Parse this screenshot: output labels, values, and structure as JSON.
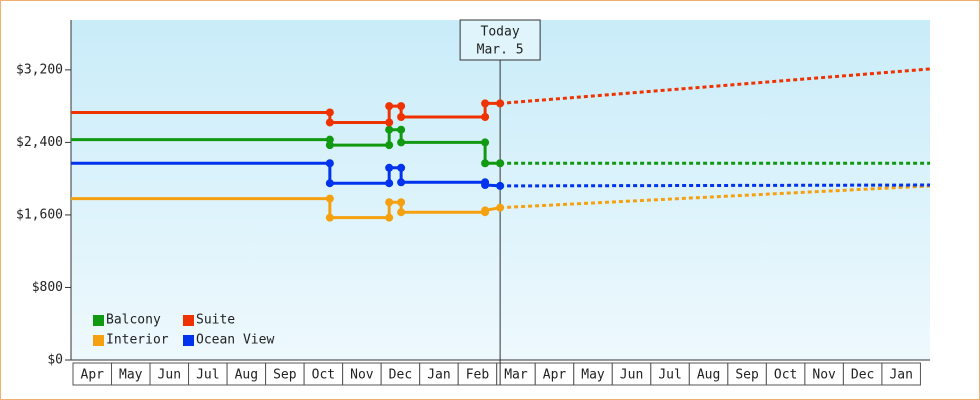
{
  "chart_data": {
    "type": "line",
    "annotation": {
      "x": 11.14,
      "lines": [
        "Today",
        "Mar. 5"
      ]
    },
    "xlim": [
      0,
      22.3
    ],
    "xticks": [
      {
        "value": 0.5,
        "label": "Apr"
      },
      {
        "value": 1.5,
        "label": "May"
      },
      {
        "value": 2.5,
        "label": "Jun"
      },
      {
        "value": 3.5,
        "label": "Jul"
      },
      {
        "value": 4.5,
        "label": "Aug"
      },
      {
        "value": 5.5,
        "label": "Sep"
      },
      {
        "value": 6.5,
        "label": "Oct"
      },
      {
        "value": 7.5,
        "label": "Nov"
      },
      {
        "value": 8.5,
        "label": "Dec"
      },
      {
        "value": 9.5,
        "label": "Jan"
      },
      {
        "value": 10.5,
        "label": "Feb"
      },
      {
        "value": 11.5,
        "label": "Mar"
      },
      {
        "value": 12.5,
        "label": "Apr"
      },
      {
        "value": 13.5,
        "label": "May"
      },
      {
        "value": 14.5,
        "label": "Jun"
      },
      {
        "value": 15.5,
        "label": "Jul"
      },
      {
        "value": 16.5,
        "label": "Aug"
      },
      {
        "value": 17.5,
        "label": "Sep"
      },
      {
        "value": 18.5,
        "label": "Oct"
      },
      {
        "value": 19.5,
        "label": "Nov"
      },
      {
        "value": 20.5,
        "label": "Dec"
      },
      {
        "value": 21.5,
        "label": "Jan"
      }
    ],
    "ylim": [
      0,
      3750
    ],
    "yticks": [
      {
        "value": 0,
        "label": "$0"
      },
      {
        "value": 800,
        "label": "$800"
      },
      {
        "value": 1600,
        "label": "$1,600"
      },
      {
        "value": 2400,
        "label": "$2,400"
      },
      {
        "value": 3200,
        "label": "$3,200"
      }
    ],
    "legend": "bottom-left",
    "series": [
      {
        "name": "Balcony",
        "color": "#119911",
        "x": [
          0,
          6.72,
          6.72,
          8.26,
          8.26,
          8.57,
          8.57,
          10.75,
          10.75,
          11.14
        ],
        "values": [
          2430,
          2430,
          2370,
          2370,
          2540,
          2540,
          2400,
          2400,
          2170,
          2170
        ],
        "forecast": {
          "x": [
            11.14,
            16.8,
            22.3
          ],
          "values": [
            2170,
            2170,
            2170
          ]
        }
      },
      {
        "name": "Suite",
        "color": "#ee3300",
        "x": [
          0,
          6.72,
          6.72,
          8.26,
          8.26,
          8.57,
          8.57,
          10.75,
          10.75,
          11.14
        ],
        "values": [
          2730,
          2730,
          2620,
          2620,
          2800,
          2800,
          2680,
          2680,
          2830,
          2830
        ],
        "forecast": {
          "x": [
            11.14,
            22.3
          ],
          "values": [
            2830,
            3210
          ]
        }
      },
      {
        "name": "Interior",
        "color": "#f5a10f",
        "x": [
          0,
          6.72,
          6.72,
          8.26,
          8.26,
          8.57,
          8.57,
          10.75,
          10.75,
          11.14
        ],
        "values": [
          1780,
          1780,
          1570,
          1570,
          1740,
          1740,
          1630,
          1630,
          1650,
          1680
        ],
        "forecast": {
          "x": [
            11.14,
            22.3
          ],
          "values": [
            1680,
            1920
          ]
        }
      },
      {
        "name": "Ocean View",
        "color": "#0033ee",
        "x": [
          0,
          6.72,
          6.72,
          8.26,
          8.26,
          8.57,
          8.57,
          10.75,
          10.75,
          11.14
        ],
        "values": [
          2170,
          2170,
          1950,
          1950,
          2120,
          2120,
          1960,
          1960,
          1930,
          1920
        ],
        "forecast": {
          "x": [
            11.14,
            22.3
          ],
          "values": [
            1920,
            1930
          ]
        }
      }
    ]
  }
}
